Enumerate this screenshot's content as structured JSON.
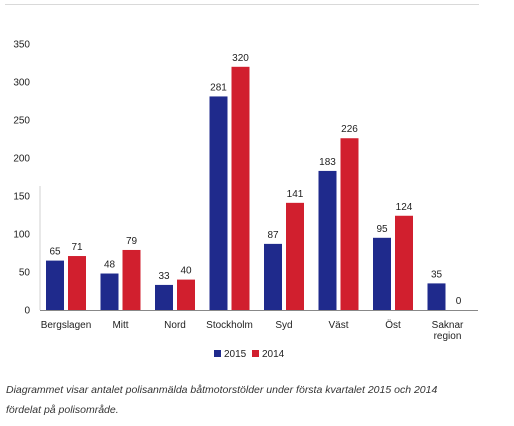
{
  "chart_data": {
    "type": "bar",
    "categories": [
      "Bergslagen",
      "Mitt",
      "Nord",
      "Stockholm",
      "Syd",
      "Väst",
      "Öst",
      "Saknar region"
    ],
    "category_lines": [
      [
        "Bergslagen"
      ],
      [
        "Mitt"
      ],
      [
        "Nord"
      ],
      [
        "Stockholm"
      ],
      [
        "Syd"
      ],
      [
        "Väst"
      ],
      [
        "Öst"
      ],
      [
        "Saknar",
        "region"
      ]
    ],
    "series": [
      {
        "name": "2015",
        "color": "#1f2a8c",
        "values": [
          65,
          48,
          33,
          281,
          87,
          183,
          95,
          35
        ]
      },
      {
        "name": "2014",
        "color": "#d11f2e",
        "values": [
          71,
          79,
          40,
          320,
          141,
          226,
          124,
          0
        ]
      }
    ],
    "ylim": [
      0,
      350
    ],
    "yticks": [
      0,
      50,
      100,
      150,
      200,
      250,
      300,
      350
    ],
    "grid": false,
    "legend_position": "bottom-center",
    "title": "",
    "xlabel": "",
    "ylabel": ""
  },
  "caption": {
    "line1": "Diagrammet visar antalet polisanmälda båtmotorstölder under första kvartalet 2015 och 2014",
    "line2": "fördelat på polisområde."
  }
}
